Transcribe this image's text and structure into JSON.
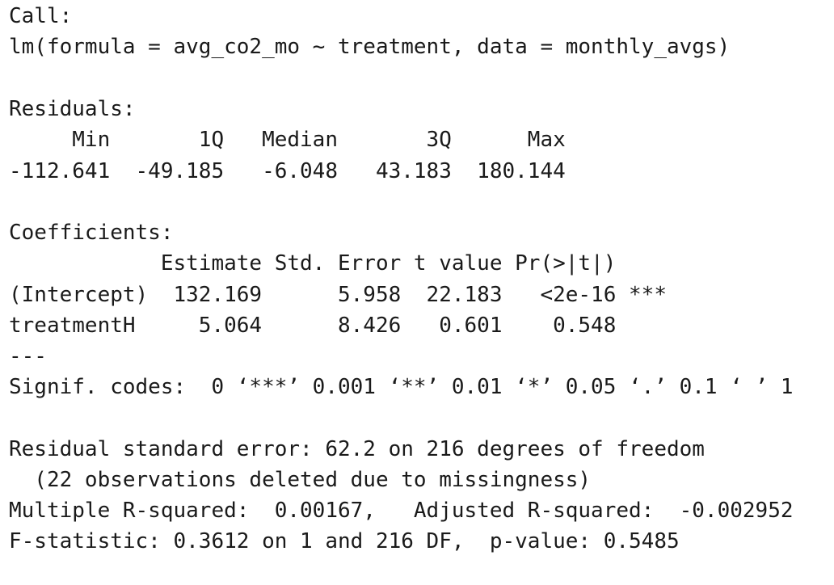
{
  "output": {
    "call_header": "Call:",
    "call_formula": "lm(formula = avg_co2_mo ~ treatment, data = monthly_avgs)",
    "residuals_header": "Residuals:",
    "residuals_columns": "     Min       1Q   Median       3Q      Max",
    "residuals_values": "-112.641  -49.185   -6.048   43.183  180.144",
    "coefficients_header": "Coefficients:",
    "coefficients_columns": "            Estimate Std. Error t value Pr(>|t|)",
    "coef_intercept": "(Intercept)  132.169      5.958  22.183   <2e-16 ***",
    "coef_treatment": "treatmentH     5.064      8.426   0.601    0.548",
    "separator": "---",
    "signif_codes": "Signif. codes:  0 ‘***’ 0.001 ‘**’ 0.01 ‘*’ 0.05 ‘.’ 0.1 ‘ ’ 1",
    "residual_se": "Residual standard error: 62.2 on 216 degrees of freedom",
    "observations_deleted": "  (22 observations deleted due to missingness)",
    "r_squared": "Multiple R-squared:  0.00167,   Adjusted R-squared:  -0.002952",
    "f_statistic": "F-statistic: 0.3612 on 1 and 216 DF,  p-value: 0.5485"
  }
}
